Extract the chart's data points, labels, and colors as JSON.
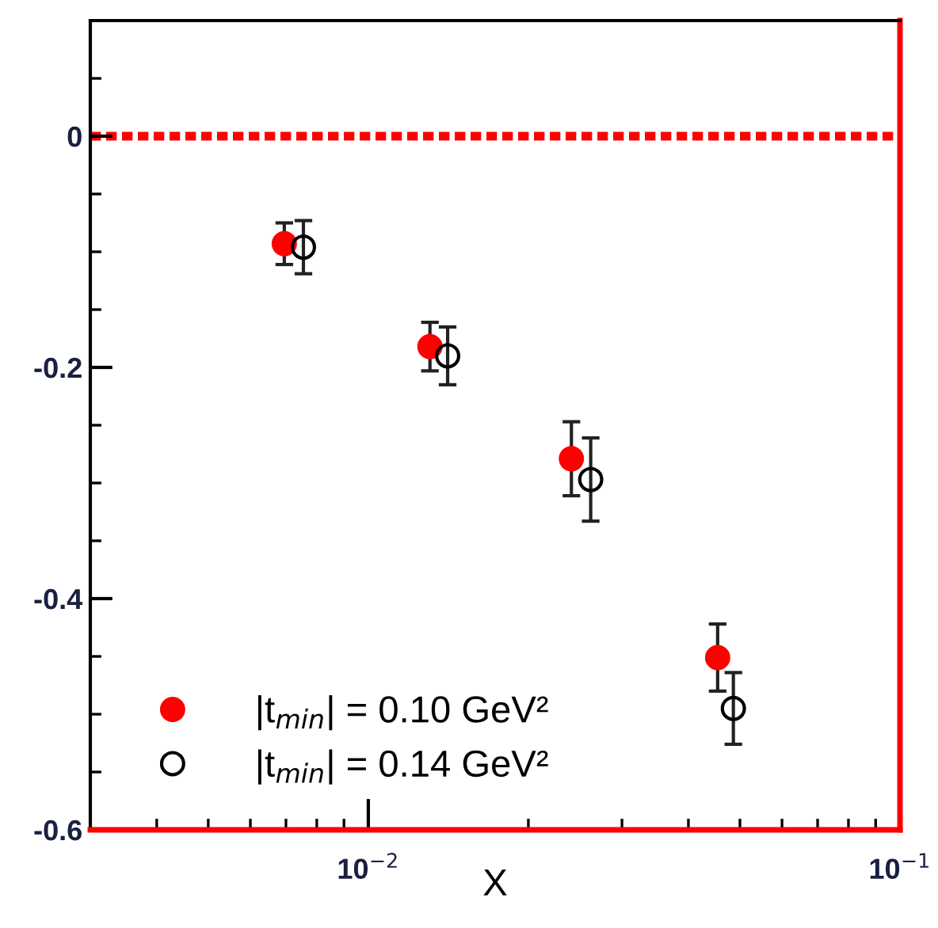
{
  "chart_data": {
    "type": "scatter",
    "xlabel": "X",
    "log": "x",
    "xlim": [
      0.003,
      0.1
    ],
    "ylim": [
      -0.6,
      0.1
    ],
    "xticks": [
      {
        "value": 0.004,
        "label": null
      },
      {
        "value": 0.005,
        "label": null
      },
      {
        "value": 0.006,
        "label": null
      },
      {
        "value": 0.007,
        "label": null
      },
      {
        "value": 0.008,
        "label": null
      },
      {
        "value": 0.009,
        "label": null
      },
      {
        "value": 0.01,
        "label": "10$^{−2}$"
      },
      {
        "value": 0.02,
        "label": null
      },
      {
        "value": 0.03,
        "label": null
      },
      {
        "value": 0.04,
        "label": null
      },
      {
        "value": 0.05,
        "label": null
      },
      {
        "value": 0.06,
        "label": null
      },
      {
        "value": 0.07,
        "label": null
      },
      {
        "value": 0.08,
        "label": null
      },
      {
        "value": 0.09,
        "label": null
      },
      {
        "value": 0.1,
        "label": "10$^{−1}$"
      }
    ],
    "yticks": [
      {
        "value": -0.6,
        "label": "-0.6"
      },
      {
        "value": -0.55,
        "label": null
      },
      {
        "value": -0.5,
        "label": null
      },
      {
        "value": -0.45,
        "label": null
      },
      {
        "value": -0.4,
        "label": "-0.4"
      },
      {
        "value": -0.35,
        "label": null
      },
      {
        "value": -0.3,
        "label": null
      },
      {
        "value": -0.25,
        "label": null
      },
      {
        "value": -0.2,
        "label": "-0.2"
      },
      {
        "value": -0.15,
        "label": null
      },
      {
        "value": -0.1,
        "label": null
      },
      {
        "value": -0.05,
        "label": null
      },
      0,
      {
        "value": 0.05,
        "label": null
      }
    ],
    "grid": false,
    "legend": "bottom left",
    "ref_lines": [
      {
        "axis": "y",
        "value": 0,
        "color": "#ff0000",
        "line_style": "dashed"
      }
    ],
    "series": [
      {
        "name": "|t$_{min}$| = 0.10 GeV²",
        "color": "#ff0000",
        "marker": "circle",
        "x": [
          0.00695,
          0.01306,
          0.0241,
          0.0454
        ],
        "values": [
          -0.093,
          -0.182,
          -0.279,
          -0.451
        ],
        "errors": [
          0.018,
          0.021,
          0.032,
          0.029
        ]
      },
      {
        "name": "|t$_{min}$| = 0.14 GeV²",
        "color": "#000000",
        "marker": "circle",
        "x": [
          0.00755,
          0.0141,
          0.0262,
          0.0486
        ],
        "values": [
          -0.096,
          -0.19,
          -0.297,
          -0.495
        ],
        "errors": [
          0.023,
          0.025,
          0.036,
          0.031
        ]
      }
    ]
  }
}
